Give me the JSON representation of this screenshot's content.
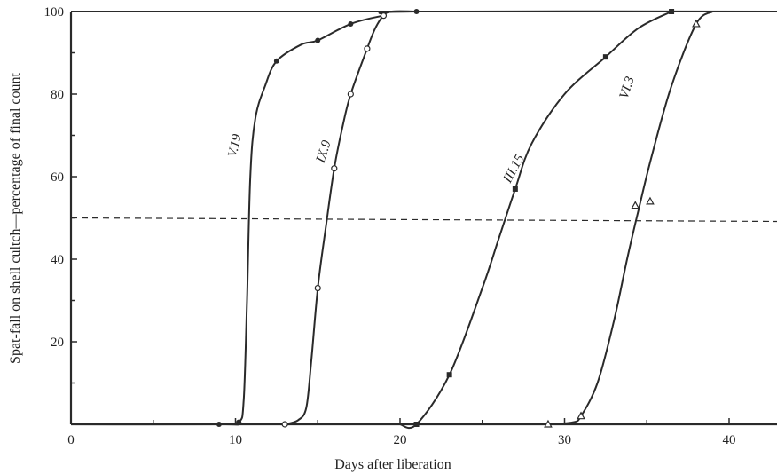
{
  "chart_data": {
    "type": "line",
    "title": "",
    "xlabel": "Days after liberation",
    "ylabel": "Spat-fall on shell cultch—percentage of final count",
    "xlim": [
      0,
      43
    ],
    "ylim": [
      0,
      100
    ],
    "xticks": [
      0,
      10,
      20,
      30,
      40
    ],
    "yticks": [
      20,
      40,
      60,
      80,
      100
    ],
    "grid": false,
    "reference_line": {
      "y": 50,
      "style": "dashed"
    },
    "series": [
      {
        "name": "V.19",
        "marker": "filled-circle",
        "points": [
          [
            9,
            0
          ],
          [
            10.2,
            0.5
          ],
          [
            12.5,
            88
          ],
          [
            15,
            93
          ],
          [
            17,
            97
          ],
          [
            19,
            99
          ],
          [
            21,
            100
          ]
        ],
        "curve": [
          [
            0,
            0
          ],
          [
            9,
            0
          ],
          [
            10.2,
            0.5
          ],
          [
            10.5,
            6
          ],
          [
            10.7,
            30
          ],
          [
            10.9,
            60
          ],
          [
            11.2,
            74
          ],
          [
            11.8,
            82
          ],
          [
            12.5,
            88
          ],
          [
            14,
            92
          ],
          [
            15,
            93
          ],
          [
            17,
            97
          ],
          [
            19,
            99
          ],
          [
            21,
            100
          ],
          [
            43,
            100
          ]
        ]
      },
      {
        "name": "IX.9",
        "marker": "open-circle",
        "points": [
          [
            13,
            0
          ],
          [
            15,
            33
          ],
          [
            16,
            62
          ],
          [
            17,
            80
          ],
          [
            18,
            91
          ],
          [
            19,
            99
          ]
        ],
        "curve": [
          [
            13,
            0
          ],
          [
            13.8,
            1
          ],
          [
            14.3,
            4
          ],
          [
            14.6,
            15
          ],
          [
            15,
            33
          ],
          [
            15.5,
            48
          ],
          [
            16,
            62
          ],
          [
            16.5,
            72
          ],
          [
            17,
            80
          ],
          [
            18,
            91
          ],
          [
            18.5,
            96
          ],
          [
            19,
            99
          ],
          [
            19.5,
            100
          ],
          [
            21,
            100
          ]
        ]
      },
      {
        "name": "III.15",
        "marker": "filled-square",
        "points": [
          [
            21,
            0
          ],
          [
            23,
            12
          ],
          [
            27,
            57
          ],
          [
            32.5,
            89
          ],
          [
            36.5,
            100
          ]
        ],
        "curve": [
          [
            20,
            0
          ],
          [
            21,
            0
          ],
          [
            23,
            12
          ],
          [
            25,
            33
          ],
          [
            26,
            45
          ],
          [
            27,
            57
          ],
          [
            28,
            68
          ],
          [
            30,
            80
          ],
          [
            32.5,
            89
          ],
          [
            34.5,
            96
          ],
          [
            36.5,
            100
          ]
        ]
      },
      {
        "name": "VI.3",
        "marker": "open-triangle",
        "points": [
          [
            29,
            0
          ],
          [
            31,
            2
          ],
          [
            34.3,
            53
          ],
          [
            35.2,
            54
          ],
          [
            38,
            97
          ]
        ],
        "curve": [
          [
            29,
            0
          ],
          [
            30.5,
            0.5
          ],
          [
            31,
            2
          ],
          [
            32,
            10
          ],
          [
            33,
            25
          ],
          [
            33.8,
            40
          ],
          [
            34.5,
            52
          ],
          [
            35.3,
            65
          ],
          [
            36.5,
            82
          ],
          [
            38,
            97
          ],
          [
            39,
            100
          ]
        ]
      }
    ]
  }
}
